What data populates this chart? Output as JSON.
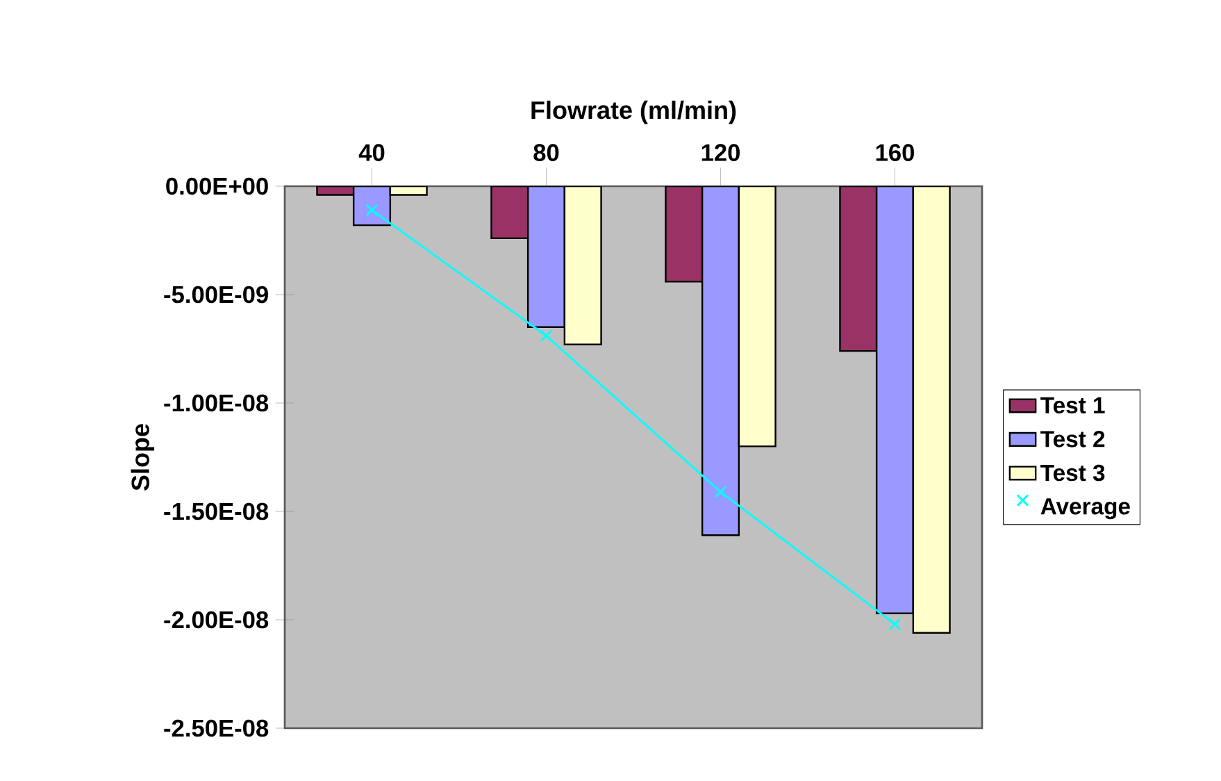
{
  "chart_data": {
    "type": "bar",
    "xlabel": "Flowrate (ml/min)",
    "ylabel": "Slope",
    "categories": [
      "40",
      "80",
      "120",
      "160"
    ],
    "series": [
      {
        "name": "Test 1",
        "color": "#993366",
        "values": [
          -4e-10,
          -2.4e-09,
          -4.4e-09,
          -7.6e-09
        ]
      },
      {
        "name": "Test 2",
        "color": "#9999ff",
        "values": [
          -1.8e-09,
          -6.5e-09,
          -1.61e-08,
          -1.97e-08
        ]
      },
      {
        "name": "Test 3",
        "color": "#ffffcc",
        "values": [
          -4e-10,
          -7.3e-09,
          -1.2e-08,
          -2.06e-08
        ]
      },
      {
        "name": "Average",
        "type": "line",
        "marker": "cross",
        "color": "#00ffff",
        "values": [
          -1.1e-09,
          -6.9e-09,
          -1.41e-08,
          -2.02e-08
        ]
      }
    ],
    "ylim": [
      -2.5e-08,
      0
    ],
    "yticks": [
      {
        "value": -2.5e-08,
        "label": "-2.50E-08"
      },
      {
        "value": -2e-08,
        "label": "-2.00E-08"
      },
      {
        "value": -1.5e-08,
        "label": "-1.50E-08"
      },
      {
        "value": -1e-08,
        "label": "-1.00E-08"
      },
      {
        "value": -5e-09,
        "label": "-5.00E-09"
      },
      {
        "value": 0,
        "label": "0.00E+00"
      }
    ],
    "legend": "right"
  }
}
